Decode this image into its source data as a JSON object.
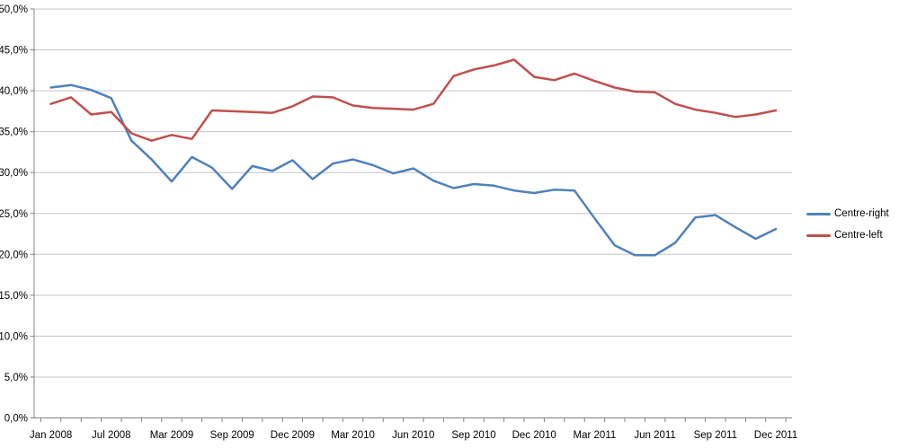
{
  "chart_data": {
    "type": "line",
    "title": "",
    "xlabel": "",
    "ylabel": "",
    "n_points": 37,
    "ylim": [
      0,
      50
    ],
    "y_tick_step": 5,
    "grid": true,
    "legend_position": "right",
    "y_tick_labels": [
      "0,0%",
      "5,0%",
      "10,0%",
      "15,0%",
      "20,0%",
      "25,0%",
      "30,0%",
      "35,0%",
      "40,0%",
      "45,0%",
      "50,0%"
    ],
    "x_tick_labels": [
      "Jan 2008",
      "Jul 2008",
      "Mar 2009",
      "Sep 2009",
      "Dec 2009",
      "Mar 2010",
      "Jun 2010",
      "Sep 2010",
      "Dec 2010",
      "Mar 2011",
      "Jun 2011",
      "Sep 2011",
      "Dec 2011"
    ],
    "x_tick_indices": [
      0,
      3,
      6,
      9,
      12,
      15,
      18,
      21,
      24,
      27,
      30,
      33,
      36
    ],
    "series": [
      {
        "name": "Centre-right",
        "color": "#4F81BD",
        "values": [
          40.4,
          40.7,
          40.1,
          39.1,
          33.9,
          31.6,
          28.9,
          31.9,
          30.6,
          28.0,
          30.8,
          30.2,
          31.5,
          29.2,
          31.1,
          31.6,
          30.9,
          29.9,
          30.5,
          29.0,
          28.1,
          28.6,
          28.4,
          27.8,
          27.5,
          27.9,
          27.8,
          24.4,
          21.1,
          19.9,
          19.9,
          21.4,
          24.5,
          24.8,
          23.3,
          21.9,
          23.1
        ]
      },
      {
        "name": "Centre-left",
        "color": "#C0504D",
        "values": [
          38.4,
          39.2,
          37.1,
          37.4,
          34.8,
          33.9,
          34.6,
          34.1,
          37.6,
          37.5,
          37.4,
          37.3,
          38.1,
          39.3,
          39.2,
          38.2,
          37.9,
          37.8,
          37.7,
          38.4,
          41.8,
          42.6,
          43.1,
          43.8,
          41.7,
          41.3,
          42.1,
          41.2,
          40.4,
          39.9,
          39.8,
          38.4,
          37.7,
          37.3,
          36.8,
          37.1,
          37.6
        ]
      }
    ]
  },
  "colors": {
    "background": "#FFFFFF",
    "gridline": "#C6C6C6",
    "axis": "#808080",
    "text": "#000000"
  }
}
